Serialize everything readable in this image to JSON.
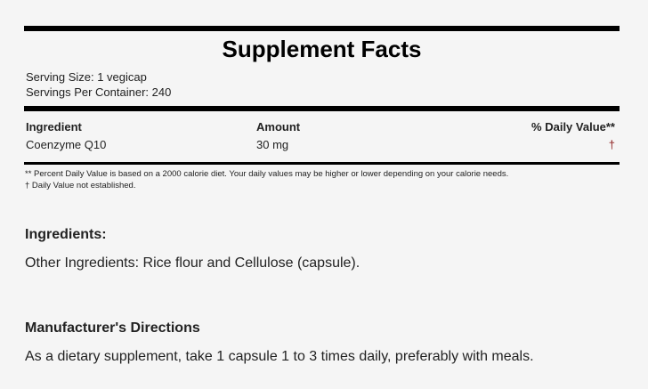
{
  "facts": {
    "title": "Supplement Facts",
    "serving_size": "Serving Size: 1 vegicap",
    "servings_per_container": "Servings Per Container: 240",
    "headers": {
      "ingredient": "Ingredient",
      "amount": "Amount",
      "daily_value": "% Daily Value**"
    },
    "rows": [
      {
        "ingredient": "Coenzyme Q10",
        "amount": "30 mg",
        "daily_value": "†"
      }
    ],
    "footnote1": "** Percent Daily Value is based on a 2000 calorie diet. Your daily values may be higher or lower depending on your calorie needs.",
    "footnote2": "† Daily Value not established."
  },
  "ingredients": {
    "heading": "Ingredients:",
    "text": "Other Ingredients: Rice flour and Cellulose (capsule)."
  },
  "directions": {
    "heading": "Manufacturer's Directions",
    "text": "As a dietary supplement, take 1 capsule 1 to 3 times daily, preferably with meals."
  },
  "colors": {
    "dagger": "#8b1a1a"
  }
}
